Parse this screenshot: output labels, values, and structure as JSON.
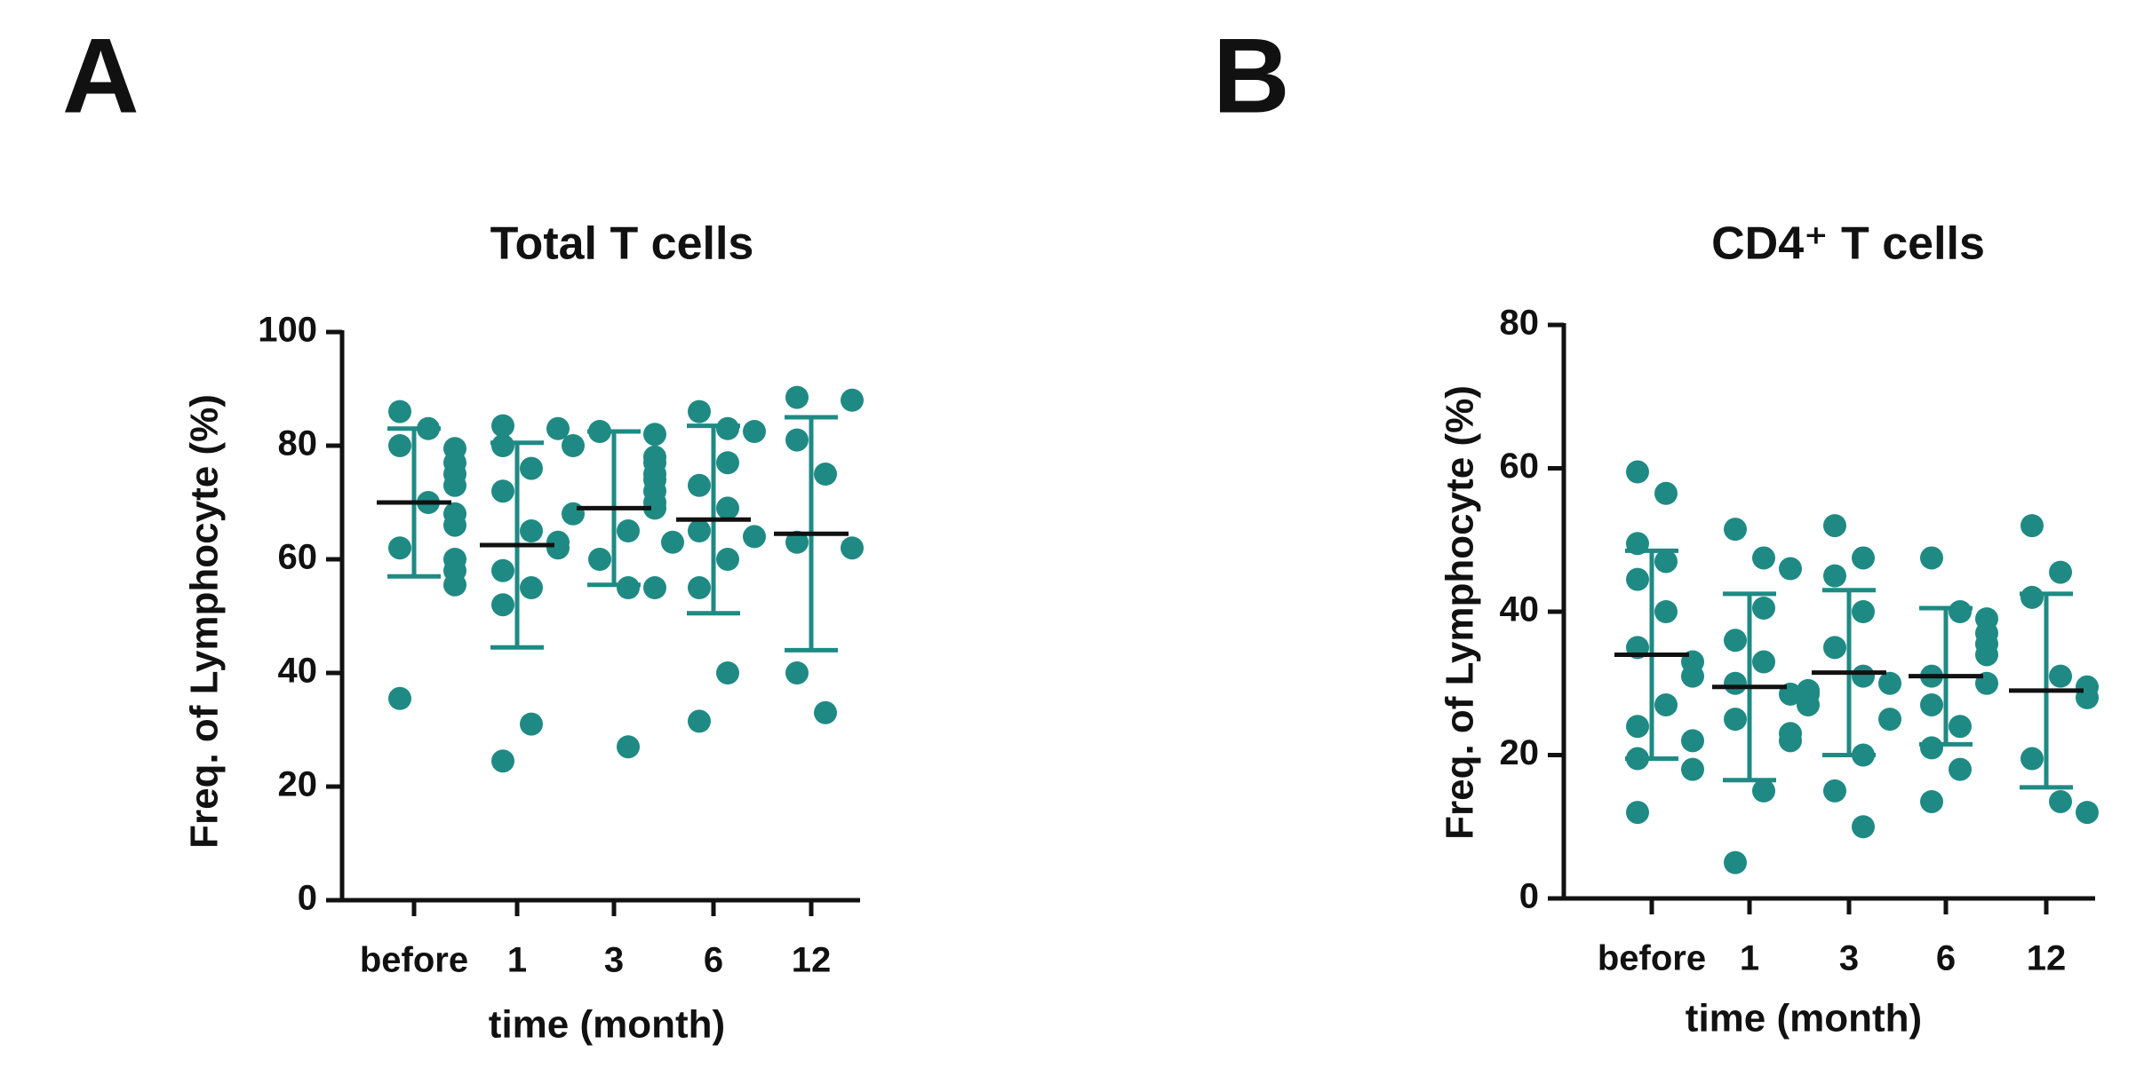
{
  "chart_data": [
    {
      "type": "dot",
      "panel": "A",
      "title": "Total T cells",
      "x_label": "time (month)",
      "y_label": "Freq. of Lymphocyte (%)",
      "categories": [
        "before",
        "1",
        "3",
        "6",
        "12"
      ],
      "color": "#1f8a84",
      "mean_color": "#111111",
      "values": [
        [
          86,
          83,
          80,
          79.5,
          77,
          75,
          73,
          70,
          68,
          66,
          62,
          60,
          58,
          55.5,
          35.5
        ],
        [
          83.5,
          83,
          80,
          76,
          72,
          65,
          63,
          62,
          58,
          55,
          52,
          31,
          24.5
        ],
        [
          82.5,
          82,
          80,
          78,
          77,
          75,
          74,
          72,
          70,
          69,
          68,
          65,
          60,
          55,
          55,
          27
        ],
        [
          86,
          83,
          82.5,
          77,
          73,
          69,
          65,
          64,
          63,
          60,
          55,
          40,
          31.5
        ],
        [
          88.5,
          88,
          81,
          75,
          63,
          62,
          40,
          33
        ]
      ],
      "means": [
        70,
        62.5,
        69,
        67,
        64.5
      ],
      "sd": [
        13,
        18,
        13.5,
        16.5,
        20.5
      ],
      "ylim": [
        0,
        100
      ],
      "yticks": [
        0,
        20,
        40,
        60,
        80,
        100
      ]
    },
    {
      "type": "dot",
      "panel": "B",
      "title": "CD4⁺ T cells",
      "x_label": "time (month)",
      "y_label": "Freq. of Lymphocyte (%)",
      "categories": [
        "before",
        "1",
        "3",
        "6",
        "12"
      ],
      "color": "#1f8a84",
      "mean_color": "#111111",
      "values": [
        [
          59.5,
          56.5,
          49.5,
          47,
          44.5,
          40,
          35,
          33,
          31,
          27,
          24,
          22,
          19.5,
          18,
          12
        ],
        [
          51.5,
          47.5,
          46,
          40.5,
          36,
          33,
          30,
          28.5,
          25,
          23,
          22,
          15,
          5
        ],
        [
          52,
          47.5,
          45,
          40,
          35,
          31,
          30,
          29,
          28.5,
          27,
          25,
          20,
          15,
          10
        ],
        [
          47.5,
          40,
          39,
          37,
          35.5,
          34,
          31,
          30,
          27,
          24,
          21,
          18,
          13.5
        ],
        [
          52,
          45.5,
          42,
          31,
          29.5,
          28,
          19.5,
          13.5,
          12
        ]
      ],
      "means": [
        34,
        29.5,
        31.5,
        31,
        29
      ],
      "sd": [
        14.5,
        13,
        11.5,
        9.5,
        13.5
      ],
      "ylim": [
        0,
        80
      ],
      "yticks": [
        0,
        20,
        40,
        60,
        80
      ]
    }
  ]
}
